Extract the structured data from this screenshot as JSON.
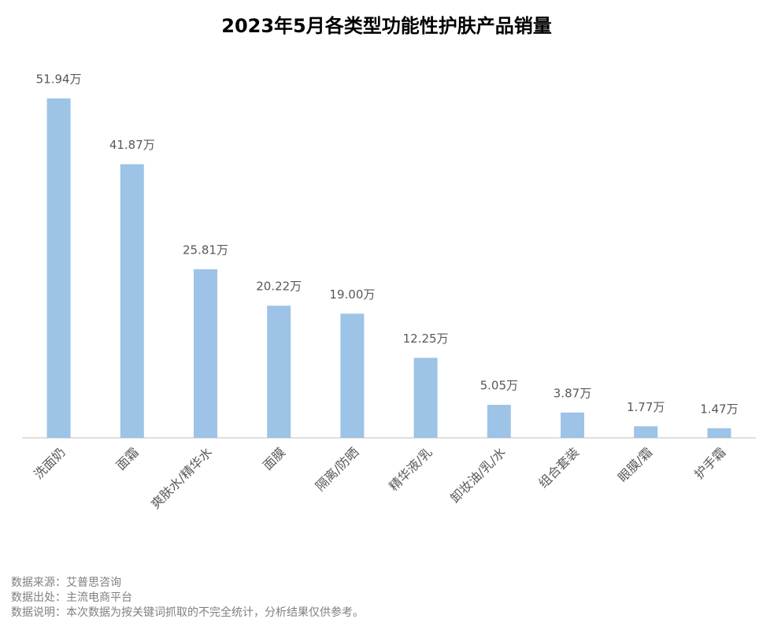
{
  "chart_data": {
    "type": "bar",
    "title": "2023年5月各类型功能性护肤产品销量",
    "categories": [
      "洗面奶",
      "面霜",
      "爽肤水/精华水",
      "面膜",
      "隔离/防晒",
      "精华液/乳",
      "卸妆油/乳/水",
      "组合套装",
      "眼膜/霜",
      "护手霜"
    ],
    "values": [
      51.94,
      41.87,
      25.81,
      20.22,
      19.0,
      12.25,
      5.05,
      3.87,
      1.77,
      1.47
    ],
    "value_labels": [
      "51.94万",
      "41.87万",
      "25.81万",
      "20.22万",
      "19.00万",
      "12.25万",
      "5.05万",
      "3.87万",
      "1.77万",
      "1.47万"
    ],
    "color": "#9dc3e6",
    "notes": [
      "数据来源：艾普思咨询",
      "数据出处：主流电商平台",
      "数据说明：本次数据为按关键词抓取的不完全统计，分析结果仅供参考。"
    ]
  }
}
